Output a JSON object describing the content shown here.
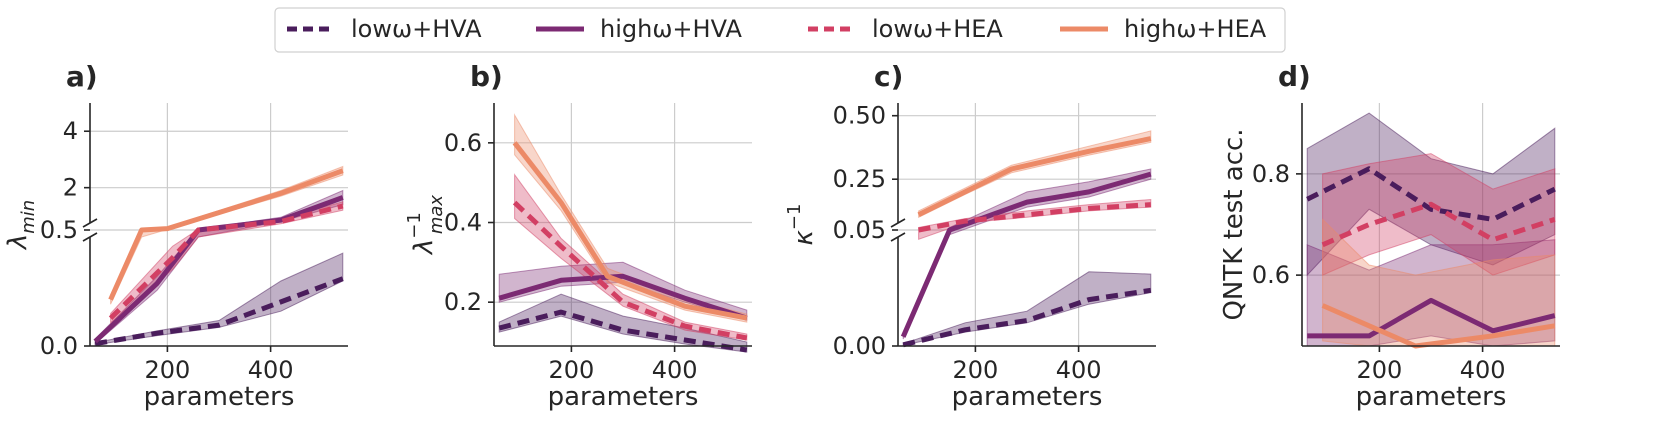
{
  "legend": {
    "entries": [
      {
        "label": "lowω+HVA",
        "color": "#4a1d5c",
        "dash": true
      },
      {
        "label": "highω+HVA",
        "color": "#7c2a73",
        "dash": false
      },
      {
        "label": "lowω+HEA",
        "color": "#d23f63",
        "dash": true
      },
      {
        "label": "highω+HEA",
        "color": "#ec8a67",
        "dash": false
      }
    ]
  },
  "chart_data": [
    {
      "panel": "a)",
      "type": "line",
      "xlabel": "parameters",
      "ylabel": "λ_min",
      "xlim": [
        50,
        550
      ],
      "xticks": [
        200,
        400
      ],
      "broken_axis": {
        "lower": [
          0,
          0.5
        ],
        "upper": [
          0.5,
          5.0
        ]
      },
      "yticks": [
        {
          "v": 0.0,
          "t": "0.0"
        },
        {
          "v": 0.5,
          "t": "0.5"
        },
        {
          "v": 2,
          "t": "2"
        },
        {
          "v": 4,
          "t": "4"
        }
      ],
      "series": [
        {
          "name": "lowω+HVA",
          "x": [
            60,
            180,
            300,
            420,
            540
          ],
          "y": [
            0.01,
            0.055,
            0.09,
            0.19,
            0.29
          ],
          "lo": [
            0.005,
            0.045,
            0.08,
            0.15,
            0.28
          ],
          "hi": [
            0.015,
            0.065,
            0.11,
            0.28,
            0.4
          ]
        },
        {
          "name": "highω+HVA",
          "x": [
            60,
            180,
            260,
            420,
            540
          ],
          "y": [
            0.02,
            0.27,
            0.5,
            0.85,
            1.65
          ],
          "lo": [
            0.01,
            0.24,
            0.47,
            0.8,
            1.4
          ],
          "hi": [
            0.03,
            0.3,
            0.53,
            0.95,
            1.9
          ]
        },
        {
          "name": "lowω+HEA",
          "x": [
            90,
            210,
            260,
            420,
            540
          ],
          "y": [
            0.12,
            0.38,
            0.5,
            0.8,
            1.35
          ],
          "lo": [
            0.1,
            0.33,
            0.47,
            0.72,
            1.2
          ],
          "hi": [
            0.14,
            0.43,
            0.53,
            0.88,
            1.5
          ]
        },
        {
          "name": "highω+HEA",
          "x": [
            90,
            150,
            200,
            420,
            540
          ],
          "y": [
            0.2,
            0.5,
            0.55,
            1.8,
            2.6
          ],
          "lo": [
            0.18,
            0.47,
            0.52,
            1.7,
            2.45
          ],
          "hi": [
            0.22,
            0.53,
            0.6,
            1.9,
            2.75
          ]
        }
      ]
    },
    {
      "panel": "b)",
      "type": "line",
      "xlabel": "parameters",
      "ylabel": "λ_max^-1",
      "xlim": [
        50,
        550
      ],
      "ylim": [
        0.09,
        0.7
      ],
      "xticks": [
        200,
        400
      ],
      "yticks": [
        {
          "v": 0.2,
          "t": "0.2"
        },
        {
          "v": 0.4,
          "t": "0.4"
        },
        {
          "v": 0.6,
          "t": "0.6"
        }
      ],
      "series": [
        {
          "name": "lowω+HVA",
          "x": [
            60,
            180,
            300,
            420,
            540
          ],
          "y": [
            0.135,
            0.175,
            0.13,
            0.105,
            0.08
          ],
          "lo": [
            0.125,
            0.165,
            0.12,
            0.095,
            0.075
          ],
          "hi": [
            0.15,
            0.22,
            0.165,
            0.135,
            0.1
          ]
        },
        {
          "name": "highω+HVA",
          "x": [
            60,
            180,
            300,
            420,
            540
          ],
          "y": [
            0.21,
            0.255,
            0.265,
            0.21,
            0.16
          ],
          "lo": [
            0.2,
            0.24,
            0.25,
            0.2,
            0.155
          ],
          "hi": [
            0.27,
            0.29,
            0.3,
            0.23,
            0.18
          ]
        },
        {
          "name": "lowω+HEA",
          "x": [
            90,
            180,
            300,
            420,
            540
          ],
          "y": [
            0.45,
            0.34,
            0.2,
            0.14,
            0.11
          ],
          "lo": [
            0.41,
            0.31,
            0.19,
            0.13,
            0.105
          ],
          "hi": [
            0.52,
            0.36,
            0.22,
            0.15,
            0.12
          ]
        },
        {
          "name": "highω+HEA",
          "x": [
            90,
            180,
            270,
            420,
            540
          ],
          "y": [
            0.6,
            0.45,
            0.265,
            0.19,
            0.16
          ],
          "lo": [
            0.57,
            0.43,
            0.25,
            0.18,
            0.15
          ],
          "hi": [
            0.67,
            0.47,
            0.285,
            0.21,
            0.17
          ]
        }
      ]
    },
    {
      "panel": "c)",
      "type": "line",
      "xlabel": "parameters",
      "ylabel": "κ^-1",
      "xlim": [
        50,
        550
      ],
      "xticks": [
        200,
        400
      ],
      "broken_axis": {
        "lower": [
          0,
          0.05
        ],
        "upper": [
          0.05,
          0.55
        ]
      },
      "yticks": [
        {
          "v": 0.0,
          "t": "0.00"
        },
        {
          "v": 0.05,
          "t": "0.05"
        },
        {
          "v": 0.25,
          "t": "0.25"
        },
        {
          "v": 0.5,
          "t": "0.50"
        }
      ],
      "series": [
        {
          "name": "lowω+HVA",
          "x": [
            60,
            180,
            300,
            420,
            540
          ],
          "y": [
            0.0005,
            0.007,
            0.011,
            0.02,
            0.024
          ],
          "lo": [
            0.0003,
            0.006,
            0.01,
            0.018,
            0.023
          ],
          "hi": [
            0.001,
            0.01,
            0.015,
            0.032,
            0.031
          ]
        },
        {
          "name": "highω+HVA",
          "x": [
            60,
            150,
            300,
            420,
            540
          ],
          "y": [
            0.004,
            0.05,
            0.16,
            0.2,
            0.27
          ],
          "lo": [
            0.003,
            0.048,
            0.14,
            0.18,
            0.25
          ],
          "hi": [
            0.005,
            0.06,
            0.2,
            0.24,
            0.29
          ]
        },
        {
          "name": "lowω+HEA",
          "x": [
            90,
            180,
            300,
            420,
            540
          ],
          "y": [
            0.05,
            0.085,
            0.11,
            0.135,
            0.15
          ],
          "lo": [
            0.046,
            0.078,
            0.1,
            0.125,
            0.14
          ],
          "hi": [
            0.06,
            0.095,
            0.125,
            0.15,
            0.17
          ]
        },
        {
          "name": "highω+HEA",
          "x": [
            90,
            180,
            270,
            420,
            540
          ],
          "y": [
            0.11,
            0.2,
            0.29,
            0.36,
            0.41
          ],
          "lo": [
            0.1,
            0.19,
            0.275,
            0.345,
            0.395
          ],
          "hi": [
            0.125,
            0.215,
            0.305,
            0.38,
            0.44
          ]
        }
      ]
    },
    {
      "panel": "d)",
      "type": "line",
      "xlabel": "parameters",
      "ylabel": "QNTK test acc.",
      "xlim": [
        50,
        550
      ],
      "ylim": [
        0.46,
        0.94
      ],
      "xticks": [
        200,
        400
      ],
      "yticks": [
        {
          "v": 0.6,
          "t": "0.6"
        },
        {
          "v": 0.8,
          "t": "0.8"
        }
      ],
      "series": [
        {
          "name": "lowω+HVA",
          "x": [
            60,
            180,
            300,
            420,
            540
          ],
          "y": [
            0.75,
            0.81,
            0.73,
            0.71,
            0.77
          ],
          "lo": [
            0.6,
            0.73,
            0.66,
            0.62,
            0.68
          ],
          "hi": [
            0.85,
            0.92,
            0.83,
            0.8,
            0.89
          ]
        },
        {
          "name": "highω+HVA",
          "x": [
            60,
            180,
            300,
            420,
            540
          ],
          "y": [
            0.48,
            0.48,
            0.55,
            0.49,
            0.52
          ],
          "lo": [
            0.46,
            0.46,
            0.48,
            0.46,
            0.47
          ],
          "hi": [
            0.66,
            0.61,
            0.66,
            0.66,
            0.67
          ]
        },
        {
          "name": "lowω+HEA",
          "x": [
            90,
            180,
            300,
            420,
            540
          ],
          "y": [
            0.66,
            0.7,
            0.74,
            0.67,
            0.71
          ],
          "lo": [
            0.6,
            0.64,
            0.68,
            0.6,
            0.64
          ],
          "hi": [
            0.8,
            0.82,
            0.84,
            0.77,
            0.81
          ]
        },
        {
          "name": "highω+HEA",
          "x": [
            90,
            180,
            270,
            420,
            540
          ],
          "y": [
            0.54,
            0.5,
            0.46,
            0.48,
            0.5
          ],
          "lo": [
            0.47,
            0.46,
            0.46,
            0.46,
            0.46
          ],
          "hi": [
            0.71,
            0.62,
            0.6,
            0.63,
            0.64
          ]
        }
      ]
    }
  ]
}
